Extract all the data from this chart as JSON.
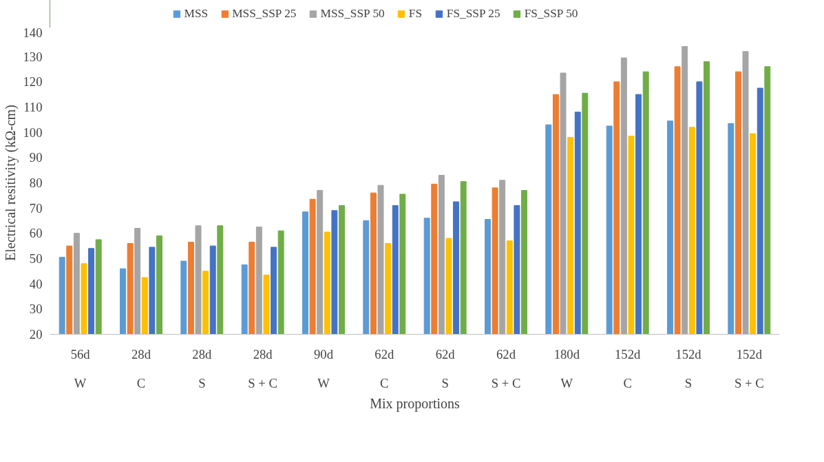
{
  "chart_data": {
    "type": "bar",
    "xlabel": "Mix proportions",
    "ylabel": "Electrical resitivity (kΩ-cm)",
    "categories": [
      "56d\nW",
      "28d\nC",
      "28d\nS",
      "28d\nS + C",
      "90d\nW",
      "62d\nC",
      "62d\nS",
      "62d\nS + C",
      "180d\nW",
      "152d\nC",
      "152d\nS",
      "152d\nS + C"
    ],
    "series": [
      {
        "name": "MSS",
        "color": "#5b9bd5",
        "values": [
          50.5,
          46,
          49,
          47.5,
          68.5,
          65,
          66,
          65.5,
          103,
          102.5,
          104.5,
          103.5
        ]
      },
      {
        "name": "MSS_SSP 25",
        "color": "#ed7d31",
        "values": [
          55,
          56,
          56.5,
          56.5,
          73.5,
          76,
          79.5,
          78,
          115,
          120,
          126,
          124
        ]
      },
      {
        "name": "MSS_SSP 50",
        "color": "#a5a5a5",
        "values": [
          60,
          62,
          63,
          62.5,
          77,
          79,
          83,
          81,
          123.5,
          129.5,
          134,
          132
        ]
      },
      {
        "name": "FS",
        "color": "#ffc000",
        "values": [
          48,
          42.5,
          45,
          43.5,
          60.5,
          56,
          58,
          57,
          98,
          98.5,
          102,
          99.5
        ]
      },
      {
        "name": "FS_SSP 25",
        "color": "#4472c4",
        "values": [
          54,
          54.5,
          55,
          54.5,
          69,
          71,
          72.5,
          71,
          108,
          115,
          120,
          117.5
        ]
      },
      {
        "name": "FS_SSP 50",
        "color": "#70ad47",
        "values": [
          57.5,
          59,
          63,
          61,
          71,
          75.5,
          80.5,
          77,
          115.5,
          124,
          128,
          126
        ]
      }
    ],
    "ylim": [
      20,
      140
    ],
    "yticks": [
      20,
      30,
      40,
      50,
      60,
      70,
      80,
      90,
      100,
      110,
      120,
      130,
      140
    ],
    "grid": false,
    "legend": "top"
  }
}
